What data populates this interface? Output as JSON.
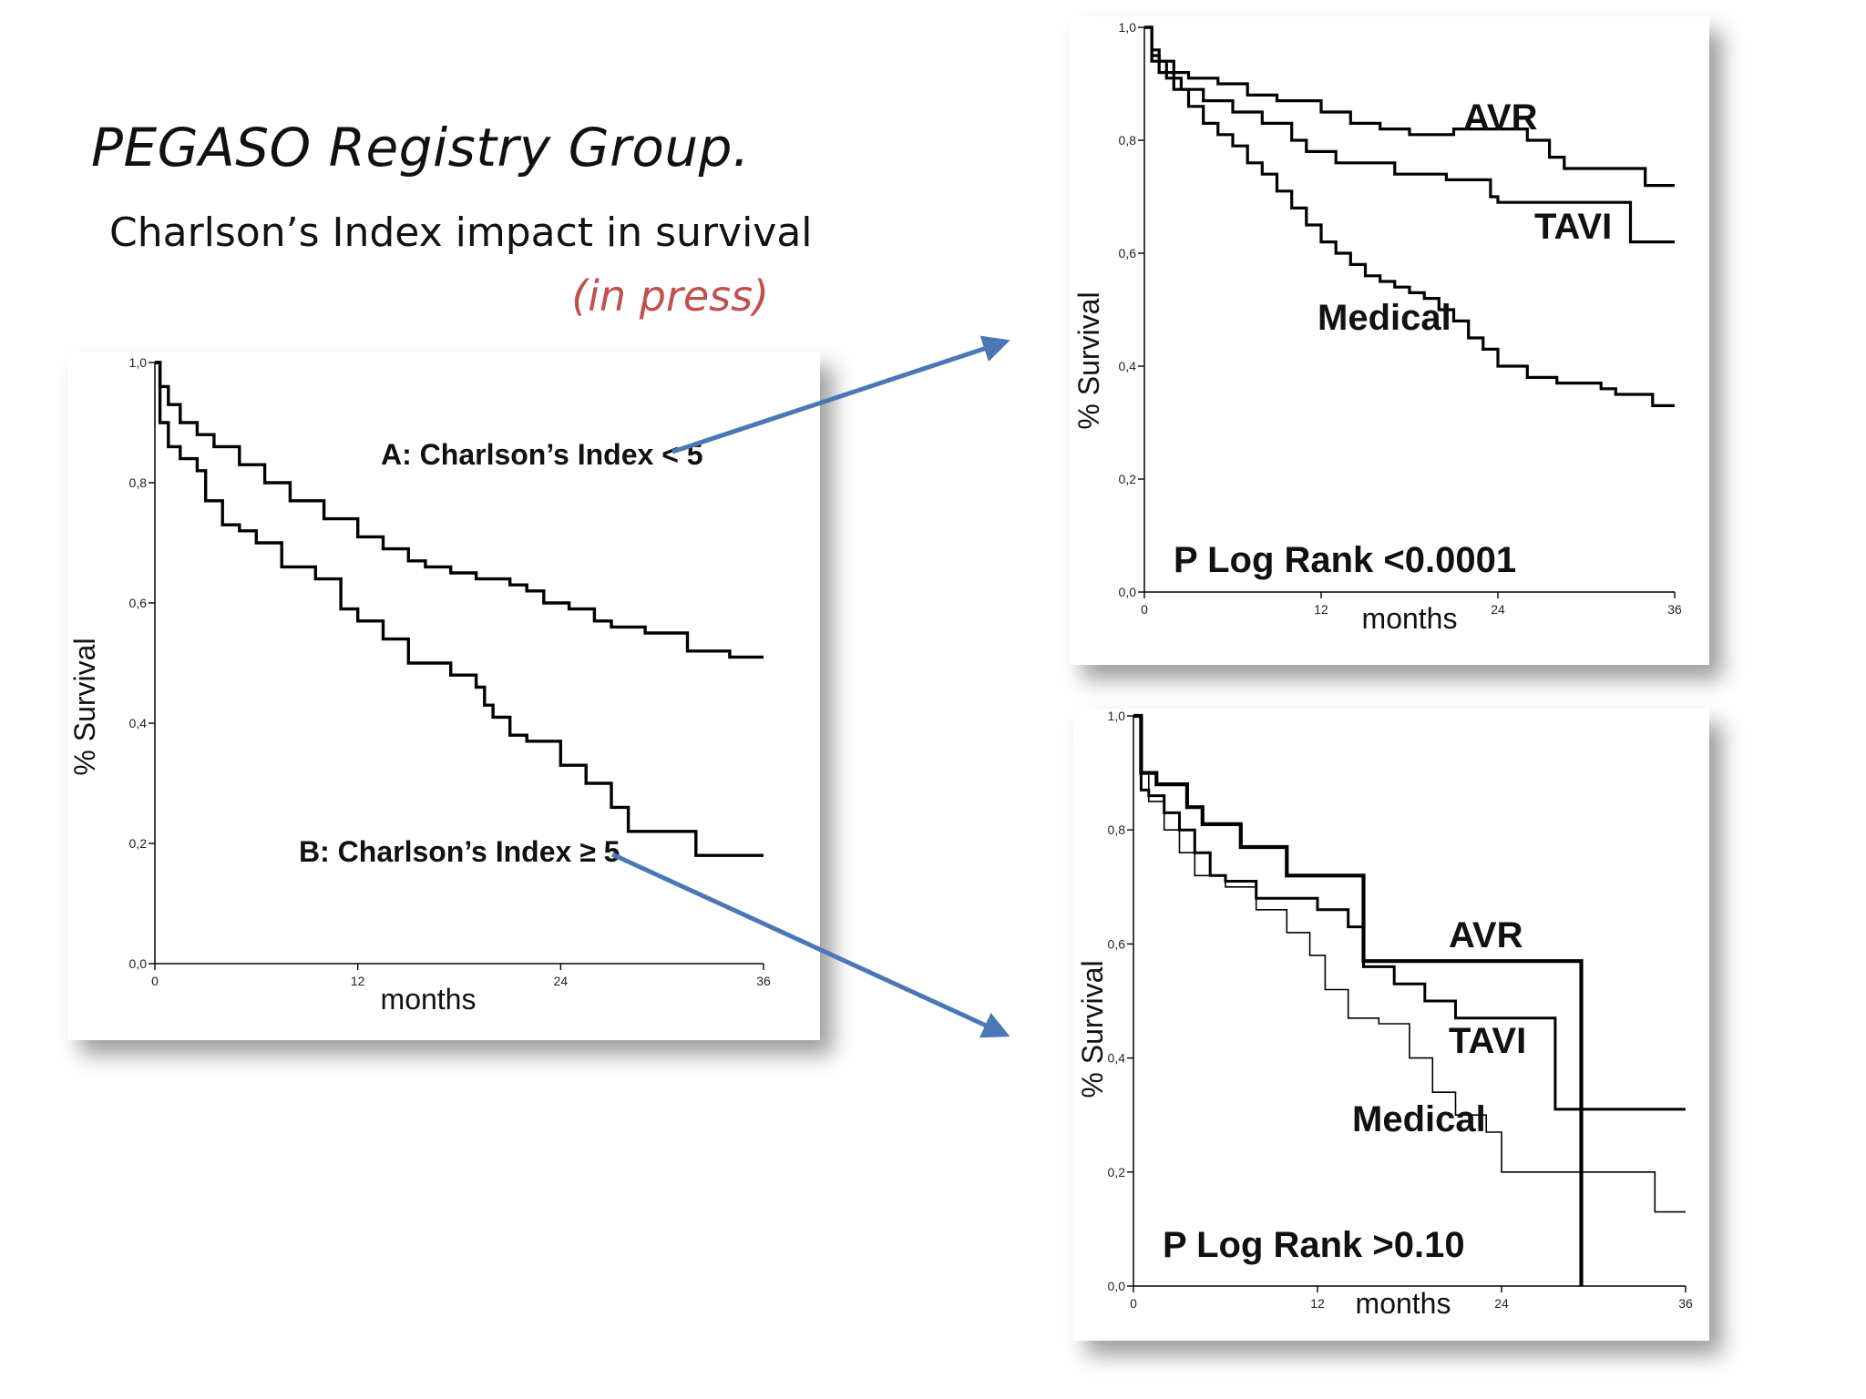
{
  "slide": {
    "title": "PEGASO Registry Group.",
    "subtitle": "Charlson’s Index impact in survival",
    "note": "(in press)",
    "arrow_color": "#4a78b5",
    "note_color": "#c0504d"
  },
  "chart_data": [
    {
      "type": "line",
      "step": true,
      "ylabel": "% Survival",
      "xlabel": "months",
      "xlim": [
        0,
        36
      ],
      "ylim": [
        0,
        1
      ],
      "xticks": [
        0,
        12,
        24,
        36
      ],
      "ytick_labels": [
        "0,0",
        "0,2",
        "0,4",
        "0,6",
        "0,8",
        "1,0"
      ],
      "series": [
        {
          "name": "A: Charlson’s Index < 5",
          "points": [
            [
              0,
              1
            ],
            [
              0.3,
              0.96
            ],
            [
              0.8,
              0.93
            ],
            [
              1.5,
              0.9
            ],
            [
              2.5,
              0.88
            ],
            [
              3.5,
              0.86
            ],
            [
              5,
              0.83
            ],
            [
              6.5,
              0.8
            ],
            [
              8,
              0.77
            ],
            [
              10,
              0.74
            ],
            [
              12,
              0.71
            ],
            [
              13.5,
              0.69
            ],
            [
              15,
              0.67
            ],
            [
              16,
              0.66
            ],
            [
              17.5,
              0.65
            ],
            [
              19,
              0.64
            ],
            [
              21,
              0.63
            ],
            [
              22,
              0.62
            ],
            [
              23,
              0.6
            ],
            [
              24.5,
              0.59
            ],
            [
              26,
              0.57
            ],
            [
              27,
              0.56
            ],
            [
              29,
              0.55
            ],
            [
              30.5,
              0.55
            ],
            [
              31.5,
              0.52
            ],
            [
              34,
              0.51
            ],
            [
              36,
              0.51
            ]
          ],
          "lineWidth": 3.4
        },
        {
          "name": "B: Charlson’s Index ≥ 5",
          "points": [
            [
              0,
              1
            ],
            [
              0.3,
              0.9
            ],
            [
              0.8,
              0.86
            ],
            [
              1.5,
              0.84
            ],
            [
              2.5,
              0.82
            ],
            [
              3,
              0.77
            ],
            [
              4,
              0.73
            ],
            [
              5,
              0.72
            ],
            [
              6,
              0.7
            ],
            [
              7.5,
              0.66
            ],
            [
              9.5,
              0.64
            ],
            [
              11,
              0.59
            ],
            [
              12,
              0.57
            ],
            [
              13.5,
              0.54
            ],
            [
              15,
              0.5
            ],
            [
              17,
              0.5
            ],
            [
              17.5,
              0.48
            ],
            [
              19,
              0.46
            ],
            [
              19.5,
              0.43
            ],
            [
              20,
              0.41
            ],
            [
              21,
              0.38
            ],
            [
              22,
              0.37
            ],
            [
              24,
              0.33
            ],
            [
              25.5,
              0.3
            ],
            [
              27,
              0.26
            ],
            [
              28,
              0.22
            ],
            [
              32,
              0.18
            ],
            [
              36,
              0.18
            ]
          ],
          "lineWidth": 3.4
        }
      ]
    },
    {
      "type": "line",
      "step": true,
      "ylabel": "% Survival",
      "xlabel": "months",
      "annotation": "P Log Rank <0.0001",
      "xlim": [
        0,
        36
      ],
      "ylim": [
        0,
        1
      ],
      "xticks": [
        0,
        12,
        24,
        36
      ],
      "ytick_labels": [
        "0,0",
        "0,2",
        "0,4",
        "0,6",
        "0,8",
        "1,0"
      ],
      "series": [
        {
          "name": "AVR",
          "points": [
            [
              0,
              1
            ],
            [
              0.5,
              0.96
            ],
            [
              1,
              0.94
            ],
            [
              2,
              0.92
            ],
            [
              3,
              0.91
            ],
            [
              5,
              0.9
            ],
            [
              7,
              0.88
            ],
            [
              9,
              0.87
            ],
            [
              12,
              0.85
            ],
            [
              14,
              0.83
            ],
            [
              16,
              0.82
            ],
            [
              18,
              0.81
            ],
            [
              21,
              0.82
            ],
            [
              26,
              0.8
            ],
            [
              27.5,
              0.77
            ],
            [
              28.5,
              0.75
            ],
            [
              34,
              0.72
            ],
            [
              36,
              0.72
            ]
          ],
          "lineWidth": 3.2
        },
        {
          "name": "TAVI",
          "points": [
            [
              0,
              1
            ],
            [
              0.5,
              0.94
            ],
            [
              1.5,
              0.91
            ],
            [
              2.5,
              0.89
            ],
            [
              4,
              0.87
            ],
            [
              6,
              0.85
            ],
            [
              8,
              0.83
            ],
            [
              10,
              0.8
            ],
            [
              11,
              0.78
            ],
            [
              13,
              0.76
            ],
            [
              17,
              0.74
            ],
            [
              20.5,
              0.73
            ],
            [
              23.5,
              0.7
            ],
            [
              24,
              0.69
            ],
            [
              32,
              0.69
            ],
            [
              33,
              0.62
            ],
            [
              36,
              0.62
            ]
          ],
          "lineWidth": 3.2
        },
        {
          "name": "Medical",
          "points": [
            [
              0,
              1
            ],
            [
              0.5,
              0.95
            ],
            [
              1,
              0.92
            ],
            [
              2,
              0.89
            ],
            [
              3,
              0.86
            ],
            [
              4,
              0.83
            ],
            [
              5,
              0.81
            ],
            [
              6,
              0.79
            ],
            [
              7,
              0.76
            ],
            [
              8,
              0.74
            ],
            [
              9,
              0.71
            ],
            [
              10,
              0.68
            ],
            [
              11,
              0.65
            ],
            [
              12,
              0.62
            ],
            [
              13,
              0.6
            ],
            [
              14,
              0.58
            ],
            [
              15,
              0.56
            ],
            [
              16,
              0.55
            ],
            [
              17,
              0.54
            ],
            [
              18,
              0.53
            ],
            [
              19,
              0.52
            ],
            [
              20,
              0.5
            ],
            [
              21,
              0.48
            ],
            [
              22,
              0.45
            ],
            [
              23,
              0.43
            ],
            [
              24,
              0.4
            ],
            [
              26,
              0.38
            ],
            [
              28,
              0.37
            ],
            [
              31,
              0.36
            ],
            [
              32,
              0.35
            ],
            [
              34.5,
              0.33
            ],
            [
              36,
              0.33
            ]
          ],
          "lineWidth": 3.2
        }
      ]
    },
    {
      "type": "line",
      "step": true,
      "ylabel": "% Survival",
      "xlabel": "months",
      "annotation": "P Log Rank >0.10",
      "xlim": [
        0,
        36
      ],
      "ylim": [
        0,
        1
      ],
      "xticks": [
        0,
        12,
        24,
        36
      ],
      "ytick_labels": [
        "0,0",
        "0,2",
        "0,4",
        "0,6",
        "0,8",
        "1,0"
      ],
      "series": [
        {
          "name": "AVR",
          "points": [
            [
              0,
              1
            ],
            [
              0.5,
              0.9
            ],
            [
              1.5,
              0.88
            ],
            [
              3.5,
              0.84
            ],
            [
              4.5,
              0.81
            ],
            [
              7,
              0.77
            ],
            [
              10,
              0.72
            ],
            [
              15,
              0.57
            ],
            [
              29,
              0.57
            ],
            [
              29.2,
              0
            ],
            [
              29.2,
              0
            ]
          ],
          "lineWidth": 4.2
        },
        {
          "name": "TAVI",
          "points": [
            [
              0,
              1
            ],
            [
              0.5,
              0.87
            ],
            [
              1,
              0.86
            ],
            [
              2,
              0.83
            ],
            [
              3,
              0.8
            ],
            [
              4,
              0.76
            ],
            [
              5,
              0.72
            ],
            [
              6,
              0.71
            ],
            [
              8,
              0.68
            ],
            [
              12,
              0.66
            ],
            [
              14,
              0.63
            ],
            [
              15,
              0.56
            ],
            [
              17,
              0.53
            ],
            [
              19,
              0.5
            ],
            [
              21,
              0.47
            ],
            [
              27.5,
              0.31
            ],
            [
              36,
              0.31
            ]
          ],
          "lineWidth": 3.0
        },
        {
          "name": "Medical",
          "points": [
            [
              0,
              1
            ],
            [
              0.5,
              0.9
            ],
            [
              1,
              0.85
            ],
            [
              2,
              0.8
            ],
            [
              3,
              0.76
            ],
            [
              4,
              0.72
            ],
            [
              6,
              0.7
            ],
            [
              8,
              0.66
            ],
            [
              10,
              0.62
            ],
            [
              11.5,
              0.58
            ],
            [
              12.5,
              0.52
            ],
            [
              14,
              0.47
            ],
            [
              16,
              0.46
            ],
            [
              18,
              0.4
            ],
            [
              19.5,
              0.34
            ],
            [
              21,
              0.3
            ],
            [
              23,
              0.27
            ],
            [
              24,
              0.2
            ],
            [
              26,
              0.2
            ],
            [
              34,
              0.13
            ],
            [
              36,
              0.13
            ]
          ],
          "lineWidth": 1.6
        }
      ]
    }
  ]
}
